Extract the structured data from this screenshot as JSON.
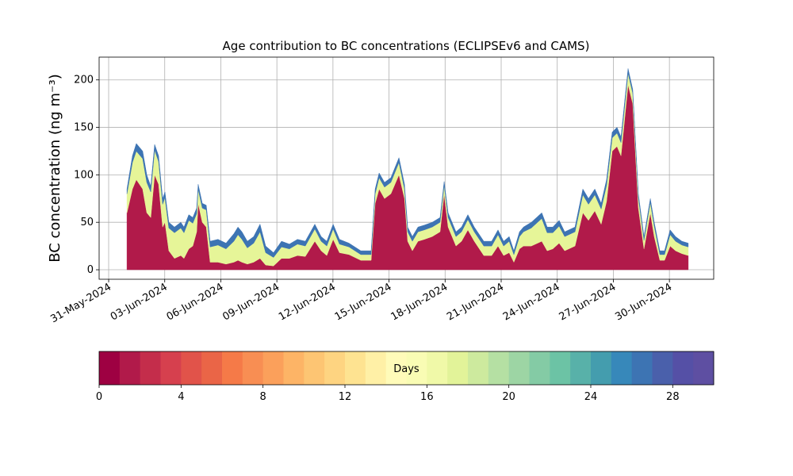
{
  "chart_data": {
    "type": "stacked_area",
    "title": "Age contribution to BC concentrations (ECLIPSEv6 and CAMS)",
    "y_label": "BC concentration (ng m⁻³)",
    "x": [
      0.98,
      1.27,
      1.48,
      1.82,
      2.04,
      2.25,
      2.46,
      2.67,
      2.89,
      3.01,
      3.22,
      3.52,
      3.86,
      4.03,
      4.29,
      4.5,
      4.71,
      4.79,
      5.01,
      5.22,
      5.43,
      5.85,
      6.28,
      6.7,
      6.92,
      7.13,
      7.42,
      7.76,
      8.1,
      8.4,
      8.82,
      9.25,
      9.67,
      10.1,
      10.52,
      11.03,
      11.37,
      11.67,
      12.01,
      12.35,
      12.86,
      13.49,
      14.04,
      14.26,
      14.47,
      14.76,
      15.1,
      15.53,
      15.83,
      16.0,
      16.25,
      16.55,
      16.89,
      17.31,
      17.73,
      17.95,
      18.16,
      18.58,
      18.88,
      19.22,
      19.56,
      20.07,
      20.49,
      20.83,
      21.13,
      21.43,
      21.68,
      21.98,
      22.19,
      22.61,
      23.17,
      23.46,
      23.76,
      24.1,
      24.4,
      24.95,
      25.37,
      25.67,
      26.01,
      26.35,
      26.64,
      26.94,
      27.2,
      27.41,
      27.79,
      28.04,
      28.34,
      28.64,
      28.98,
      29.19,
      29.49,
      29.74,
      30.04,
      30.33,
      30.67,
      31.01
    ],
    "series": [
      {
        "color": "#b11a4a",
        "values": [
          60,
          85,
          95,
          85,
          60,
          55,
          100,
          90,
          45,
          50,
          20,
          12,
          15,
          12,
          22,
          25,
          40,
          70,
          50,
          45,
          8,
          8,
          6,
          8,
          10,
          8,
          6,
          8,
          12,
          5,
          4,
          12,
          12,
          15,
          14,
          30,
          20,
          15,
          32,
          18,
          16,
          10,
          10,
          70,
          85,
          75,
          80,
          100,
          75,
          30,
          20,
          30,
          32,
          35,
          40,
          80,
          45,
          25,
          30,
          42,
          30,
          15,
          15,
          25,
          15,
          18,
          8,
          22,
          25,
          25,
          30,
          20,
          22,
          28,
          20,
          25,
          60,
          52,
          62,
          48,
          72,
          125,
          130,
          120,
          195,
          175,
          65,
          22,
          60,
          35,
          10,
          10,
          25,
          20,
          17,
          15
        ]
      },
      {
        "color": "#e6f598",
        "values": [
          20,
          28,
          30,
          32,
          32,
          27,
          26,
          24,
          24,
          26,
          24,
          27,
          29,
          27,
          30,
          24,
          19,
          15,
          15,
          18,
          16,
          18,
          16,
          22,
          27,
          24,
          17,
          20,
          28,
          13,
          9,
          12,
          10,
          12,
          11,
          13,
          10,
          10,
          11,
          9,
          8,
          6,
          6,
          10,
          12,
          12,
          12,
          13,
          10,
          10,
          10,
          10,
          10,
          10,
          10,
          9,
          10,
          10,
          10,
          11,
          10,
          10,
          10,
          12,
          10,
          12,
          8,
          13,
          15,
          19,
          24,
          19,
          17,
          18,
          15,
          15,
          19,
          17,
          17,
          16,
          17,
          14,
          14,
          14,
          12,
          11,
          11,
          9,
          11,
          11,
          6,
          6,
          12,
          10,
          9,
          9
        ]
      },
      {
        "color": "#3d74b3",
        "values": [
          5,
          7,
          8,
          8,
          8,
          6,
          6,
          6,
          6,
          6,
          6,
          6,
          6,
          6,
          6,
          6,
          6,
          5,
          5,
          5,
          6,
          6,
          6,
          8,
          8,
          8,
          7,
          7,
          8,
          7,
          5,
          6,
          5,
          5,
          5,
          5,
          5,
          5,
          5,
          5,
          4,
          4,
          4,
          5,
          5,
          5,
          5,
          5,
          5,
          5,
          5,
          5,
          5,
          5,
          5,
          4,
          5,
          5,
          5,
          5,
          5,
          5,
          5,
          5,
          5,
          5,
          4,
          5,
          5,
          6,
          6,
          6,
          6,
          6,
          5,
          5,
          6,
          6,
          6,
          6,
          6,
          6,
          6,
          6,
          5,
          4,
          4,
          4,
          4,
          4,
          4,
          4,
          5,
          5,
          4,
          4
        ]
      }
    ],
    "xlim": [
      -0.51,
      32.37
    ],
    "xticks": [
      {
        "value": 0,
        "label": "31-May-2024"
      },
      {
        "value": 3,
        "label": "03-Jun-2024"
      },
      {
        "value": 6,
        "label": "06-Jun-2024"
      },
      {
        "value": 9,
        "label": "09-Jun-2024"
      },
      {
        "value": 12,
        "label": "12-Jun-2024"
      },
      {
        "value": 15,
        "label": "15-Jun-2024"
      },
      {
        "value": 18,
        "label": "18-Jun-2024"
      },
      {
        "value": 21,
        "label": "21-Jun-2024"
      },
      {
        "value": 24,
        "label": "24-Jun-2024"
      },
      {
        "value": 27,
        "label": "27-Jun-2024"
      },
      {
        "value": 30,
        "label": "30-Jun-2024"
      }
    ],
    "ylim": [
      -10,
      224
    ],
    "yticks": [
      0,
      50,
      100,
      150,
      200
    ],
    "grid": true,
    "colorbar": {
      "label": "Days",
      "lim": [
        0,
        30
      ],
      "ticks": [
        0,
        4,
        8,
        12,
        16,
        20,
        24,
        28
      ],
      "colors": [
        "#9e0142",
        "#b11a4a",
        "#c42d4b",
        "#d6404e",
        "#e1534a",
        "#ea6547",
        "#f57a48",
        "#f88e53",
        "#fba05b",
        "#fdb466",
        "#fdc573",
        "#fed481",
        "#fee391",
        "#fff0a6",
        "#fffbb9",
        "#f9fcb4",
        "#f0f9a8",
        "#e2f399",
        "#cdea9e",
        "#b5e0a3",
        "#9dd5a4",
        "#84cba5",
        "#6cc3a5",
        "#58b1a9",
        "#449dae",
        "#3788ba",
        "#3d74b3",
        "#4a60ab",
        "#5550a6",
        "#5e4fa2"
      ]
    }
  }
}
